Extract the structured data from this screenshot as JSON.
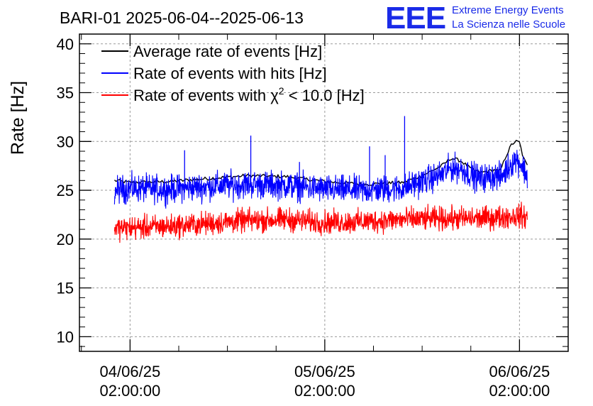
{
  "chart_data": {
    "type": "line",
    "title": "BARI-01 2025-06-04--2025-06-13",
    "ylabel": "Rate [Hz]",
    "xlabel": "",
    "ylim": [
      8.5,
      41
    ],
    "yticks": [
      10,
      15,
      20,
      25,
      30,
      35,
      40
    ],
    "xlim_days": [
      -0.26,
      2.25
    ],
    "grid": true,
    "x_unit": "days since 04/06/25 02:00:00",
    "x_ticks": [
      {
        "value": 0,
        "label_line1": "04/06/25",
        "label_line2": "02:00:00"
      },
      {
        "value": 1,
        "label_line1": "05/06/25",
        "label_line2": "02:00:00"
      },
      {
        "value": 2,
        "label_line1": "06/06/25",
        "label_line2": "02:00:00"
      }
    ],
    "series": [
      {
        "name": "Average rate of events [Hz]",
        "color": "#000000",
        "x": [
          -0.08,
          0.0,
          0.2,
          0.4,
          0.6,
          0.8,
          1.0,
          1.2,
          1.4,
          1.5,
          1.6,
          1.65,
          1.7,
          1.75,
          1.8,
          1.85,
          1.88,
          1.9,
          1.93,
          1.96,
          1.98,
          2.0,
          2.02,
          2.04
        ],
        "y": [
          26.0,
          25.8,
          25.9,
          26.2,
          26.5,
          26.4,
          25.9,
          25.6,
          25.8,
          26.5,
          27.5,
          28.3,
          28.0,
          27.2,
          26.8,
          27.0,
          27.1,
          26.9,
          28.5,
          29.7,
          30.0,
          29.9,
          28.3,
          27.5
        ]
      },
      {
        "name": "Rate of events with hits [Hz]",
        "color": "#0000ff",
        "x": [
          -0.08,
          0.0,
          0.2,
          0.4,
          0.6,
          0.8,
          1.0,
          1.2,
          1.4,
          1.5,
          1.6,
          1.65,
          1.7,
          1.75,
          1.8,
          1.85,
          1.88,
          1.9,
          1.93,
          1.96,
          1.98,
          2.0,
          2.02,
          2.04
        ],
        "y": [
          25.0,
          25.2,
          25.1,
          25.4,
          25.6,
          25.5,
          25.1,
          25.0,
          25.2,
          25.9,
          26.6,
          27.3,
          27.2,
          26.6,
          26.2,
          26.4,
          26.5,
          26.3,
          27.0,
          27.8,
          28.2,
          27.9,
          27.3,
          26.3
        ],
        "spikes": [
          {
            "x": 0.28,
            "y": 29.1
          },
          {
            "x": 0.62,
            "y": 30.6
          },
          {
            "x": 1.23,
            "y": 29.5
          },
          {
            "x": 1.41,
            "y": 32.6
          },
          {
            "x": 1.31,
            "y": 28.6
          },
          {
            "x": 0.87,
            "y": 27.9
          }
        ]
      },
      {
        "name": "Rate of events with χ² < 10.0 [Hz]",
        "color": "#ff0000",
        "x": [
          -0.08,
          0.2,
          0.4,
          0.6,
          0.8,
          1.0,
          1.2,
          1.4,
          1.6,
          1.8,
          2.0,
          2.04
        ],
        "y": [
          21.1,
          21.3,
          21.6,
          21.9,
          22.0,
          21.7,
          21.8,
          22.0,
          22.1,
          22.1,
          22.4,
          22.2
        ]
      }
    ],
    "legend": {
      "location": "top-left",
      "entries": [
        {
          "label": "Average rate of events [Hz]",
          "color": "#000000"
        },
        {
          "label": "Rate of events with hits [Hz]",
          "color": "#0000ff"
        },
        {
          "label_prefix": "Rate of events with ",
          "chi": "χ",
          "sup": "2",
          "label_suffix": " < 10.0 [Hz]",
          "color": "#ff0000"
        }
      ]
    }
  },
  "logo": {
    "mark": "EEE",
    "line1": "Extreme Energy Events",
    "line2": "La Scienza nelle Scuole",
    "color": "#1a2be8"
  }
}
